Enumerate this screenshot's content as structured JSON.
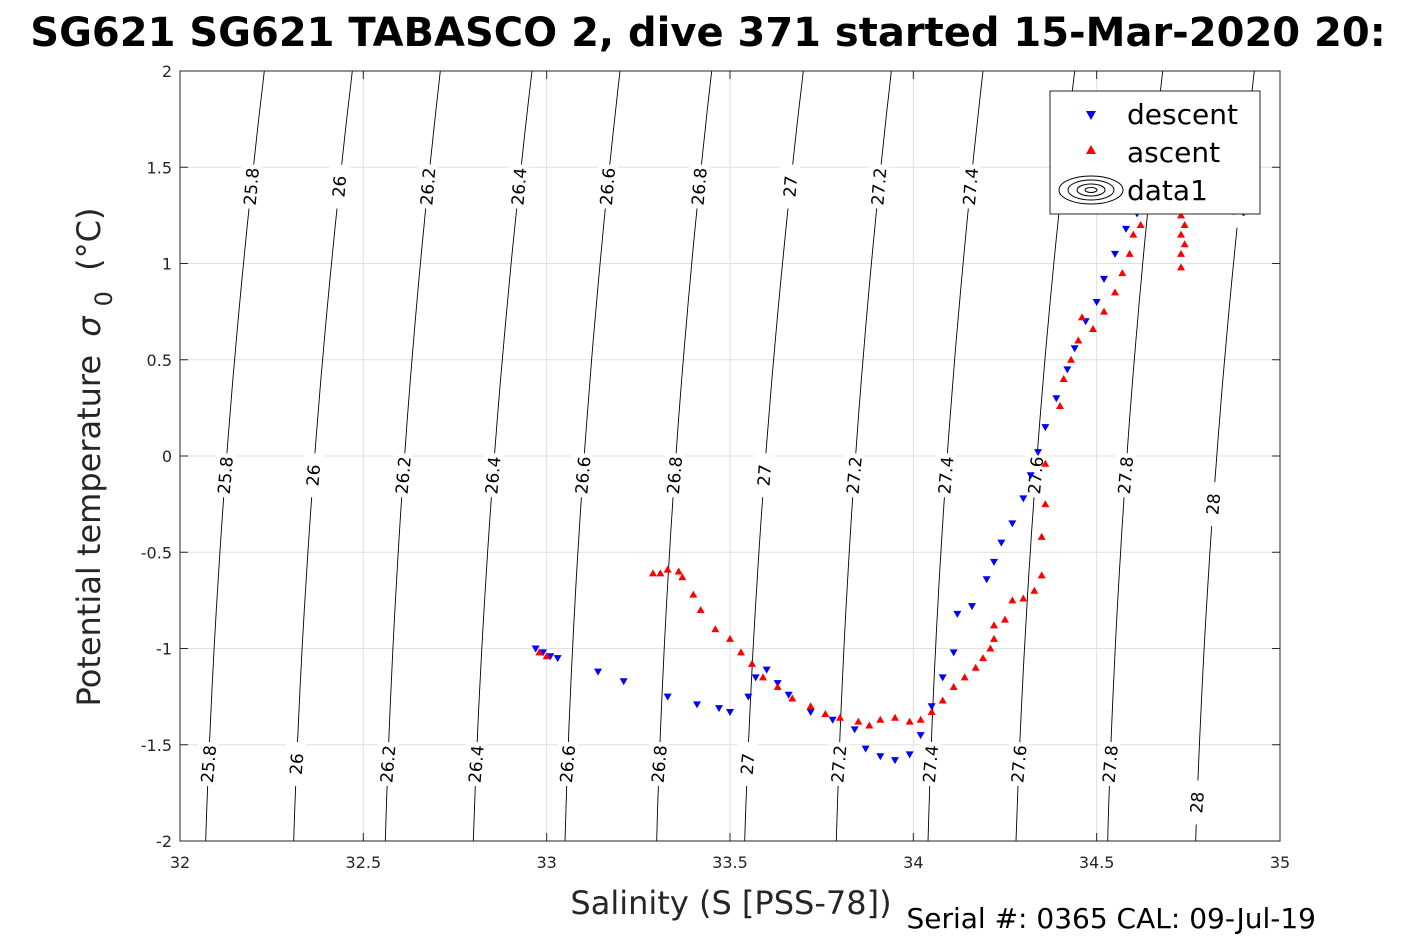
{
  "chart_data": {
    "type": "scatter",
    "title": "SG621 SG621 TABASCO 2, dive 371 started 15-Mar-2020 20:",
    "xlabel": "Salinity (S [PSS-78])",
    "ylabel": "Potential temperature",
    "ylabel_symbol": "σ",
    "ylabel_subscript": "0",
    "ylabel_unit": "(°C)",
    "xlim": [
      32,
      35
    ],
    "ylim": [
      -2,
      2
    ],
    "xticks": [
      32,
      32.5,
      33,
      33.5,
      34,
      34.5,
      35
    ],
    "yticks": [
      -2,
      -1.5,
      -1,
      -0.5,
      0,
      0.5,
      1,
      1.5,
      2
    ],
    "xtick_labels": [
      "32",
      "32.5",
      "33",
      "33.5",
      "34",
      "34.5",
      "35"
    ],
    "ytick_labels": [
      "-2",
      "-1.5",
      "-1",
      "-0.5",
      "0",
      "0.5",
      "1",
      "1.5",
      "2"
    ],
    "grid": true,
    "legend_position": "top-right",
    "footer": "Serial #: 0365  CAL: 09-Jul-19",
    "contours": [
      {
        "level": "25.8",
        "x_bottom": 32.07,
        "x_top": 32.04,
        "dxdy": 0.1,
        "label_y": [
          1.4,
          -0.1,
          -1.6
        ]
      },
      {
        "level": "26",
        "x_bottom": 32.31,
        "x_top": 32.28,
        "dxdy": 0.1,
        "label_y": [
          1.4,
          -0.1,
          -1.6
        ]
      },
      {
        "level": "26.2",
        "x_bottom": 32.56,
        "x_top": 32.52,
        "dxdy": 0.1,
        "label_y": [
          1.4,
          -0.1,
          -1.6
        ]
      },
      {
        "level": "26.4",
        "x_bottom": 32.8,
        "x_top": 32.77,
        "dxdy": 0.1,
        "label_y": [
          1.4,
          -0.1,
          -1.6
        ]
      },
      {
        "level": "26.6",
        "x_bottom": 33.05,
        "x_top": 33.01,
        "dxdy": 0.1,
        "label_y": [
          1.4,
          -0.1,
          -1.6
        ]
      },
      {
        "level": "26.8",
        "x_bottom": 33.3,
        "x_top": 33.26,
        "dxdy": 0.1,
        "label_y": [
          1.4,
          -0.1,
          -1.6
        ]
      },
      {
        "level": "27",
        "x_bottom": 33.54,
        "x_top": 33.51,
        "dxdy": 0.1,
        "label_y": [
          1.4,
          -0.1,
          -1.6
        ]
      },
      {
        "level": "27.2",
        "x_bottom": 33.79,
        "x_top": 33.75,
        "dxdy": 0.1,
        "label_y": [
          1.4,
          -0.1,
          -1.6
        ]
      },
      {
        "level": "27.4",
        "x_bottom": 34.04,
        "x_top": 34.0,
        "dxdy": 0.1,
        "label_y": [
          1.4,
          -0.1,
          -1.6
        ]
      },
      {
        "level": "27.6",
        "x_bottom": 34.28,
        "x_top": 34.25,
        "dxdy": 0.1,
        "label_y": [
          -0.1,
          -1.6
        ]
      },
      {
        "level": "27.8",
        "x_bottom": 34.53,
        "x_top": 34.49,
        "dxdy": 0.1,
        "label_y": [
          -0.1,
          -1.6
        ]
      },
      {
        "level": "28",
        "x_bottom": 34.77,
        "x_top": 34.74,
        "dxdy": 0.1,
        "label_y": [
          1.3,
          -0.25,
          -1.8
        ]
      }
    ],
    "series": [
      {
        "name": "descent",
        "marker": "triangle-down",
        "color": "#0000ff",
        "points": [
          [
            32.97,
            -1.0
          ],
          [
            32.99,
            -1.02
          ],
          [
            33.01,
            -1.04
          ],
          [
            33.03,
            -1.05
          ],
          [
            33.14,
            -1.12
          ],
          [
            33.21,
            -1.17
          ],
          [
            33.33,
            -1.25
          ],
          [
            33.41,
            -1.29
          ],
          [
            33.47,
            -1.31
          ],
          [
            33.5,
            -1.33
          ],
          [
            33.55,
            -1.25
          ],
          [
            33.57,
            -1.15
          ],
          [
            33.6,
            -1.11
          ],
          [
            33.63,
            -1.18
          ],
          [
            33.66,
            -1.24
          ],
          [
            33.72,
            -1.33
          ],
          [
            33.78,
            -1.37
          ],
          [
            33.84,
            -1.42
          ],
          [
            33.87,
            -1.52
          ],
          [
            33.91,
            -1.56
          ],
          [
            33.95,
            -1.58
          ],
          [
            33.99,
            -1.55
          ],
          [
            34.02,
            -1.45
          ],
          [
            34.05,
            -1.3
          ],
          [
            34.08,
            -1.15
          ],
          [
            34.11,
            -1.02
          ],
          [
            34.12,
            -0.82
          ],
          [
            34.16,
            -0.78
          ],
          [
            34.2,
            -0.64
          ],
          [
            34.22,
            -0.55
          ],
          [
            34.24,
            -0.45
          ],
          [
            34.27,
            -0.35
          ],
          [
            34.3,
            -0.22
          ],
          [
            34.32,
            -0.1
          ],
          [
            34.34,
            0.02
          ],
          [
            34.36,
            0.15
          ],
          [
            34.39,
            0.3
          ],
          [
            34.42,
            0.45
          ],
          [
            34.44,
            0.56
          ],
          [
            34.47,
            0.7
          ],
          [
            34.5,
            0.8
          ],
          [
            34.52,
            0.92
          ],
          [
            34.55,
            1.05
          ],
          [
            34.58,
            1.18
          ],
          [
            34.61,
            1.26
          ],
          [
            34.65,
            1.32
          ],
          [
            34.69,
            1.38
          ]
        ]
      },
      {
        "name": "ascent",
        "marker": "triangle-up",
        "color": "#ff0000",
        "points": [
          [
            32.98,
            -1.02
          ],
          [
            33.0,
            -1.04
          ],
          [
            33.29,
            -0.61
          ],
          [
            33.31,
            -0.61
          ],
          [
            33.33,
            -0.59
          ],
          [
            33.36,
            -0.6
          ],
          [
            33.37,
            -0.63
          ],
          [
            33.4,
            -0.72
          ],
          [
            33.42,
            -0.8
          ],
          [
            33.46,
            -0.9
          ],
          [
            33.5,
            -0.95
          ],
          [
            33.53,
            -1.02
          ],
          [
            33.56,
            -1.08
          ],
          [
            33.59,
            -1.15
          ],
          [
            33.63,
            -1.2
          ],
          [
            33.67,
            -1.26
          ],
          [
            33.72,
            -1.3
          ],
          [
            33.76,
            -1.34
          ],
          [
            33.8,
            -1.36
          ],
          [
            33.85,
            -1.38
          ],
          [
            33.88,
            -1.4
          ],
          [
            33.91,
            -1.37
          ],
          [
            33.95,
            -1.36
          ],
          [
            33.99,
            -1.38
          ],
          [
            34.02,
            -1.37
          ],
          [
            34.05,
            -1.33
          ],
          [
            34.08,
            -1.27
          ],
          [
            34.11,
            -1.2
          ],
          [
            34.14,
            -1.15
          ],
          [
            34.17,
            -1.1
          ],
          [
            34.19,
            -1.05
          ],
          [
            34.21,
            -1.0
          ],
          [
            34.22,
            -0.95
          ],
          [
            34.22,
            -0.88
          ],
          [
            34.25,
            -0.85
          ],
          [
            34.27,
            -0.75
          ],
          [
            34.3,
            -0.74
          ],
          [
            34.33,
            -0.7
          ],
          [
            34.35,
            -0.62
          ],
          [
            34.35,
            -0.42
          ],
          [
            34.36,
            -0.25
          ],
          [
            34.36,
            -0.04
          ],
          [
            34.4,
            0.26
          ],
          [
            34.41,
            0.4
          ],
          [
            34.43,
            0.5
          ],
          [
            34.45,
            0.6
          ],
          [
            34.46,
            0.72
          ],
          [
            34.49,
            0.66
          ],
          [
            34.52,
            0.75
          ],
          [
            34.55,
            0.85
          ],
          [
            34.57,
            0.95
          ],
          [
            34.59,
            1.05
          ],
          [
            34.6,
            1.15
          ],
          [
            34.62,
            1.2
          ],
          [
            34.64,
            1.28
          ],
          [
            34.66,
            1.35
          ],
          [
            34.73,
            1.35
          ],
          [
            34.73,
            1.25
          ],
          [
            34.73,
            1.15
          ],
          [
            34.73,
            1.05
          ],
          [
            34.73,
            0.98
          ],
          [
            34.74,
            1.1
          ],
          [
            34.74,
            1.2
          ]
        ]
      },
      {
        "name": "data1",
        "marker": "contour"
      }
    ]
  }
}
